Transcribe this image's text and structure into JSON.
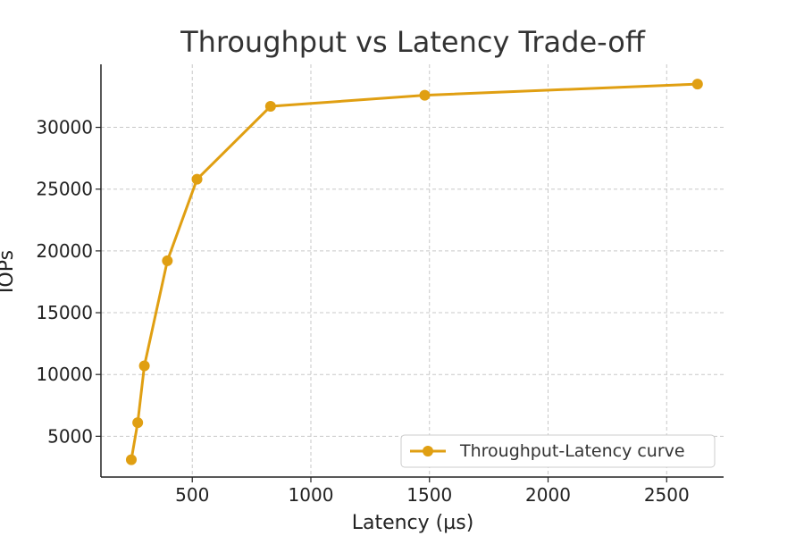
{
  "chart_data": {
    "type": "line",
    "title": "Throughput vs Latency Trade-off",
    "xlabel": "Latency (µs)",
    "ylabel": "IOPs",
    "xlim": [
      115,
      2740
    ],
    "ylim": [
      1700,
      35100
    ],
    "xticks": [
      500,
      1000,
      1500,
      2000,
      2500
    ],
    "yticks": [
      5000,
      10000,
      15000,
      20000,
      25000,
      30000
    ],
    "grid": true,
    "legend_position": "lower-right",
    "series": [
      {
        "name": "Throughput-Latency curve",
        "color": "#E09F12",
        "marker": "circle",
        "x": [
          243,
          270,
          298,
          395,
          520,
          830,
          1480,
          2630
        ],
        "y": [
          3100,
          6100,
          10700,
          19200,
          25800,
          31700,
          32600,
          33500
        ]
      }
    ]
  }
}
